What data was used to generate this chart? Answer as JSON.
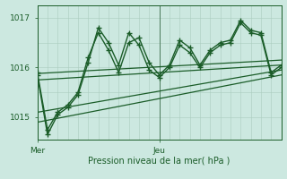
{
  "xlabel": "Pression niveau de la mer( hPa )",
  "bg_color": "#cce8e0",
  "grid_color_v": "#aaccbe",
  "grid_color_h": "#aaccbe",
  "line_color": "#1a5c28",
  "yticks": [
    1015,
    1016,
    1017
  ],
  "ylim": [
    1014.55,
    1017.25
  ],
  "xlim": [
    0,
    48
  ],
  "xtick_positions": [
    0,
    24
  ],
  "xtick_labels": [
    "Mer",
    "Jeu"
  ],
  "vline_x": 24,
  "series": [
    {
      "x": [
        0,
        2,
        4,
        6,
        8,
        10,
        12,
        14,
        16,
        18,
        20,
        22,
        24,
        26,
        28,
        30,
        32,
        34,
        36,
        38,
        40,
        42,
        44,
        46,
        48
      ],
      "y": [
        1015.9,
        1014.75,
        1015.1,
        1015.25,
        1015.5,
        1016.2,
        1016.7,
        1016.35,
        1015.9,
        1016.5,
        1016.6,
        1016.1,
        1015.85,
        1016.05,
        1016.55,
        1016.4,
        1016.05,
        1016.35,
        1016.5,
        1016.55,
        1016.95,
        1016.75,
        1016.7,
        1015.9,
        1016.05
      ],
      "marker": "+",
      "markersize": 4,
      "linewidth": 1.0,
      "linestyle": "-"
    },
    {
      "x": [
        0,
        2,
        4,
        6,
        8,
        10,
        12,
        14,
        16,
        18,
        20,
        22,
        24,
        26,
        28,
        30,
        32,
        34,
        36,
        38,
        40,
        42,
        44,
        46,
        48
      ],
      "y": [
        1015.85,
        1014.65,
        1015.05,
        1015.2,
        1015.45,
        1016.1,
        1016.8,
        1016.5,
        1016.05,
        1016.7,
        1016.45,
        1015.95,
        1015.8,
        1016.0,
        1016.45,
        1016.3,
        1016.0,
        1016.3,
        1016.45,
        1016.5,
        1016.9,
        1016.7,
        1016.65,
        1015.85,
        1016.0
      ],
      "marker": "+",
      "markersize": 4,
      "linewidth": 1.0,
      "linestyle": "-"
    },
    {
      "x": [
        0,
        48
      ],
      "y": [
        1015.88,
        1016.15
      ],
      "marker": null,
      "markersize": 0,
      "linewidth": 0.9,
      "linestyle": "-"
    },
    {
      "x": [
        0,
        48
      ],
      "y": [
        1015.75,
        1016.05
      ],
      "marker": null,
      "markersize": 0,
      "linewidth": 0.9,
      "linestyle": "-"
    },
    {
      "x": [
        0,
        48
      ],
      "y": [
        1015.1,
        1015.95
      ],
      "marker": null,
      "markersize": 0,
      "linewidth": 0.9,
      "linestyle": "-"
    },
    {
      "x": [
        0,
        48
      ],
      "y": [
        1014.9,
        1015.85
      ],
      "marker": null,
      "markersize": 0,
      "linewidth": 0.9,
      "linestyle": "-"
    }
  ]
}
